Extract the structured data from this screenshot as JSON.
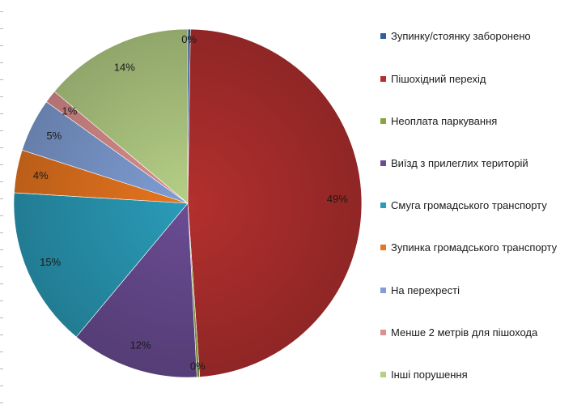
{
  "chart_data": {
    "type": "pie",
    "title": "",
    "legend_position": "right",
    "slices": [
      {
        "name": "Зупинку/стоянку заборонено",
        "value": 0.25,
        "label": "0%",
        "color": "#2e5f9e"
      },
      {
        "name": "Пішохідний перехід",
        "value": 49,
        "label": "49%",
        "color": "#b3302e"
      },
      {
        "name": "Неоплата паркування",
        "value": 0.25,
        "label": "0%",
        "color": "#86a63b"
      },
      {
        "name": "Виїзд з прилеглих територій",
        "value": 12,
        "label": "12%",
        "color": "#6a4c93"
      },
      {
        "name": "Смуга громадського транспорту",
        "value": 15,
        "label": "15%",
        "color": "#2a9bb8"
      },
      {
        "name": "Зупинка громадського транспорту",
        "value": 4,
        "label": "4%",
        "color": "#e8751f"
      },
      {
        "name": "На перехресті",
        "value": 5,
        "label": "5%",
        "color": "#7f9ed4"
      },
      {
        "name": "Менше 2 метрів для пішохода",
        "value": 1.2,
        "label": "1%",
        "color": "#de8f8f"
      },
      {
        "name": "Інші порушення",
        "value": 14,
        "label": "14%",
        "color": "#b5cf86"
      }
    ]
  }
}
